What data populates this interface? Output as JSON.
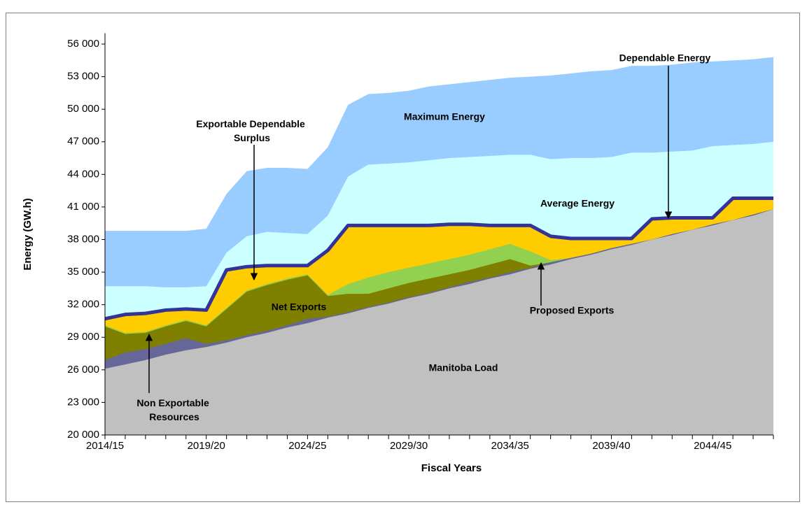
{
  "chart_data": {
    "type": "area",
    "x_label": "Fiscal Years",
    "y_label": "Energy (GW.h)",
    "categories": [
      "2014/15",
      null,
      null,
      null,
      null,
      "2019/20",
      null,
      null,
      null,
      null,
      "2024/25",
      null,
      null,
      null,
      null,
      "2029/30",
      null,
      null,
      null,
      null,
      "2034/35",
      null,
      null,
      null,
      null,
      "2039/40",
      null,
      null,
      null,
      null,
      "2044/45",
      null,
      null,
      null
    ],
    "ylim": [
      20000,
      57000
    ],
    "yticks": [
      {
        "value": 20000,
        "label": "20 000"
      },
      {
        "value": 23000,
        "label": "23 000"
      },
      {
        "value": 26000,
        "label": "26 000"
      },
      {
        "value": 29000,
        "label": "29 000"
      },
      {
        "value": 32000,
        "label": "32 000"
      },
      {
        "value": 35000,
        "label": "35 000"
      },
      {
        "value": 38000,
        "label": "38 000"
      },
      {
        "value": 41000,
        "label": "41 000"
      },
      {
        "value": 44000,
        "label": "44 000"
      },
      {
        "value": 47000,
        "label": "47 000"
      },
      {
        "value": 50000,
        "label": "50 000"
      },
      {
        "value": 53000,
        "label": "53 000"
      },
      {
        "value": 56000,
        "label": "56 000"
      }
    ],
    "series": [
      {
        "name": "Maximum Energy",
        "color": "#99ccff",
        "values": [
          38800,
          38800,
          38800,
          38800,
          38800,
          39000,
          42200,
          44300,
          44600,
          44600,
          44500,
          46500,
          50400,
          51400,
          51500,
          51700,
          52100,
          52300,
          52500,
          52700,
          52900,
          53000,
          53100,
          53300,
          53500,
          53600,
          54000,
          54000,
          54100,
          54300,
          54400,
          54500,
          54600,
          54800
        ]
      },
      {
        "name": "Average Energy",
        "color": "#ccffff",
        "values": [
          33700,
          33700,
          33700,
          33600,
          33600,
          33700,
          36800,
          38300,
          38700,
          38600,
          38500,
          40200,
          43800,
          44900,
          45000,
          45100,
          45300,
          45500,
          45600,
          45700,
          45800,
          45800,
          45400,
          45500,
          45500,
          45600,
          46000,
          46000,
          46100,
          46200,
          46600,
          46700,
          46800,
          47000
        ]
      },
      {
        "name": "Dependable Energy",
        "color": "#ffcc00",
        "line_color": "#333399",
        "values": [
          30700,
          31100,
          31200,
          31500,
          31600,
          31500,
          35200,
          35500,
          35600,
          35600,
          35600,
          37000,
          39300,
          39300,
          39300,
          39300,
          39300,
          39400,
          39400,
          39300,
          39300,
          39300,
          38300,
          38100,
          38100,
          38100,
          38100,
          39900,
          40000,
          40000,
          40000,
          41800,
          41800,
          41800
        ]
      },
      {
        "name": "Proposed Exports",
        "color": "#92d050",
        "values": [
          30100,
          29400,
          29500,
          30100,
          30600,
          30100,
          31700,
          33300,
          33900,
          34400,
          34800,
          32900,
          33900,
          34500,
          35000,
          35400,
          35800,
          36200,
          36600,
          37100,
          37600,
          36900,
          36100,
          36300,
          36700,
          37200,
          37600,
          38000,
          38500,
          38900,
          39400,
          39800,
          40300,
          40800
        ]
      },
      {
        "name": "Net Exports",
        "color": "#808000",
        "values": [
          30000,
          29300,
          29400,
          30000,
          30500,
          30000,
          31600,
          33200,
          33800,
          34300,
          34700,
          32800,
          33000,
          33000,
          33500,
          34000,
          34400,
          34800,
          35200,
          35700,
          36200,
          35600,
          35900,
          36300,
          36700,
          37200,
          37600,
          38000,
          38500,
          38900,
          39400,
          39800,
          40300,
          40800
        ]
      },
      {
        "name": "Non Exportable Resources",
        "color": "#666699",
        "values": [
          26900,
          27600,
          27900,
          28400,
          28900,
          28400,
          28700,
          29200,
          29600,
          30100,
          30700,
          30900,
          31300,
          31800,
          32200,
          32700,
          33100,
          33600,
          34100,
          34500,
          35000,
          35400,
          35900,
          36300,
          36700,
          37200,
          37600,
          38000,
          38500,
          38900,
          39400,
          39800,
          40300,
          40800
        ]
      },
      {
        "name": "Manitoba Load",
        "color": "#c0c0c0",
        "values": [
          26100,
          26500,
          26900,
          27400,
          27800,
          28100,
          28500,
          29000,
          29400,
          29900,
          30300,
          30800,
          31200,
          31700,
          32100,
          32600,
          33000,
          33500,
          33900,
          34400,
          34800,
          35300,
          35700,
          36200,
          36600,
          37100,
          37500,
          38000,
          38400,
          38900,
          39300,
          39800,
          40200,
          40800
        ]
      }
    ],
    "annotations": [
      {
        "text": "Exportable Dependable Surplus"
      }
    ]
  }
}
